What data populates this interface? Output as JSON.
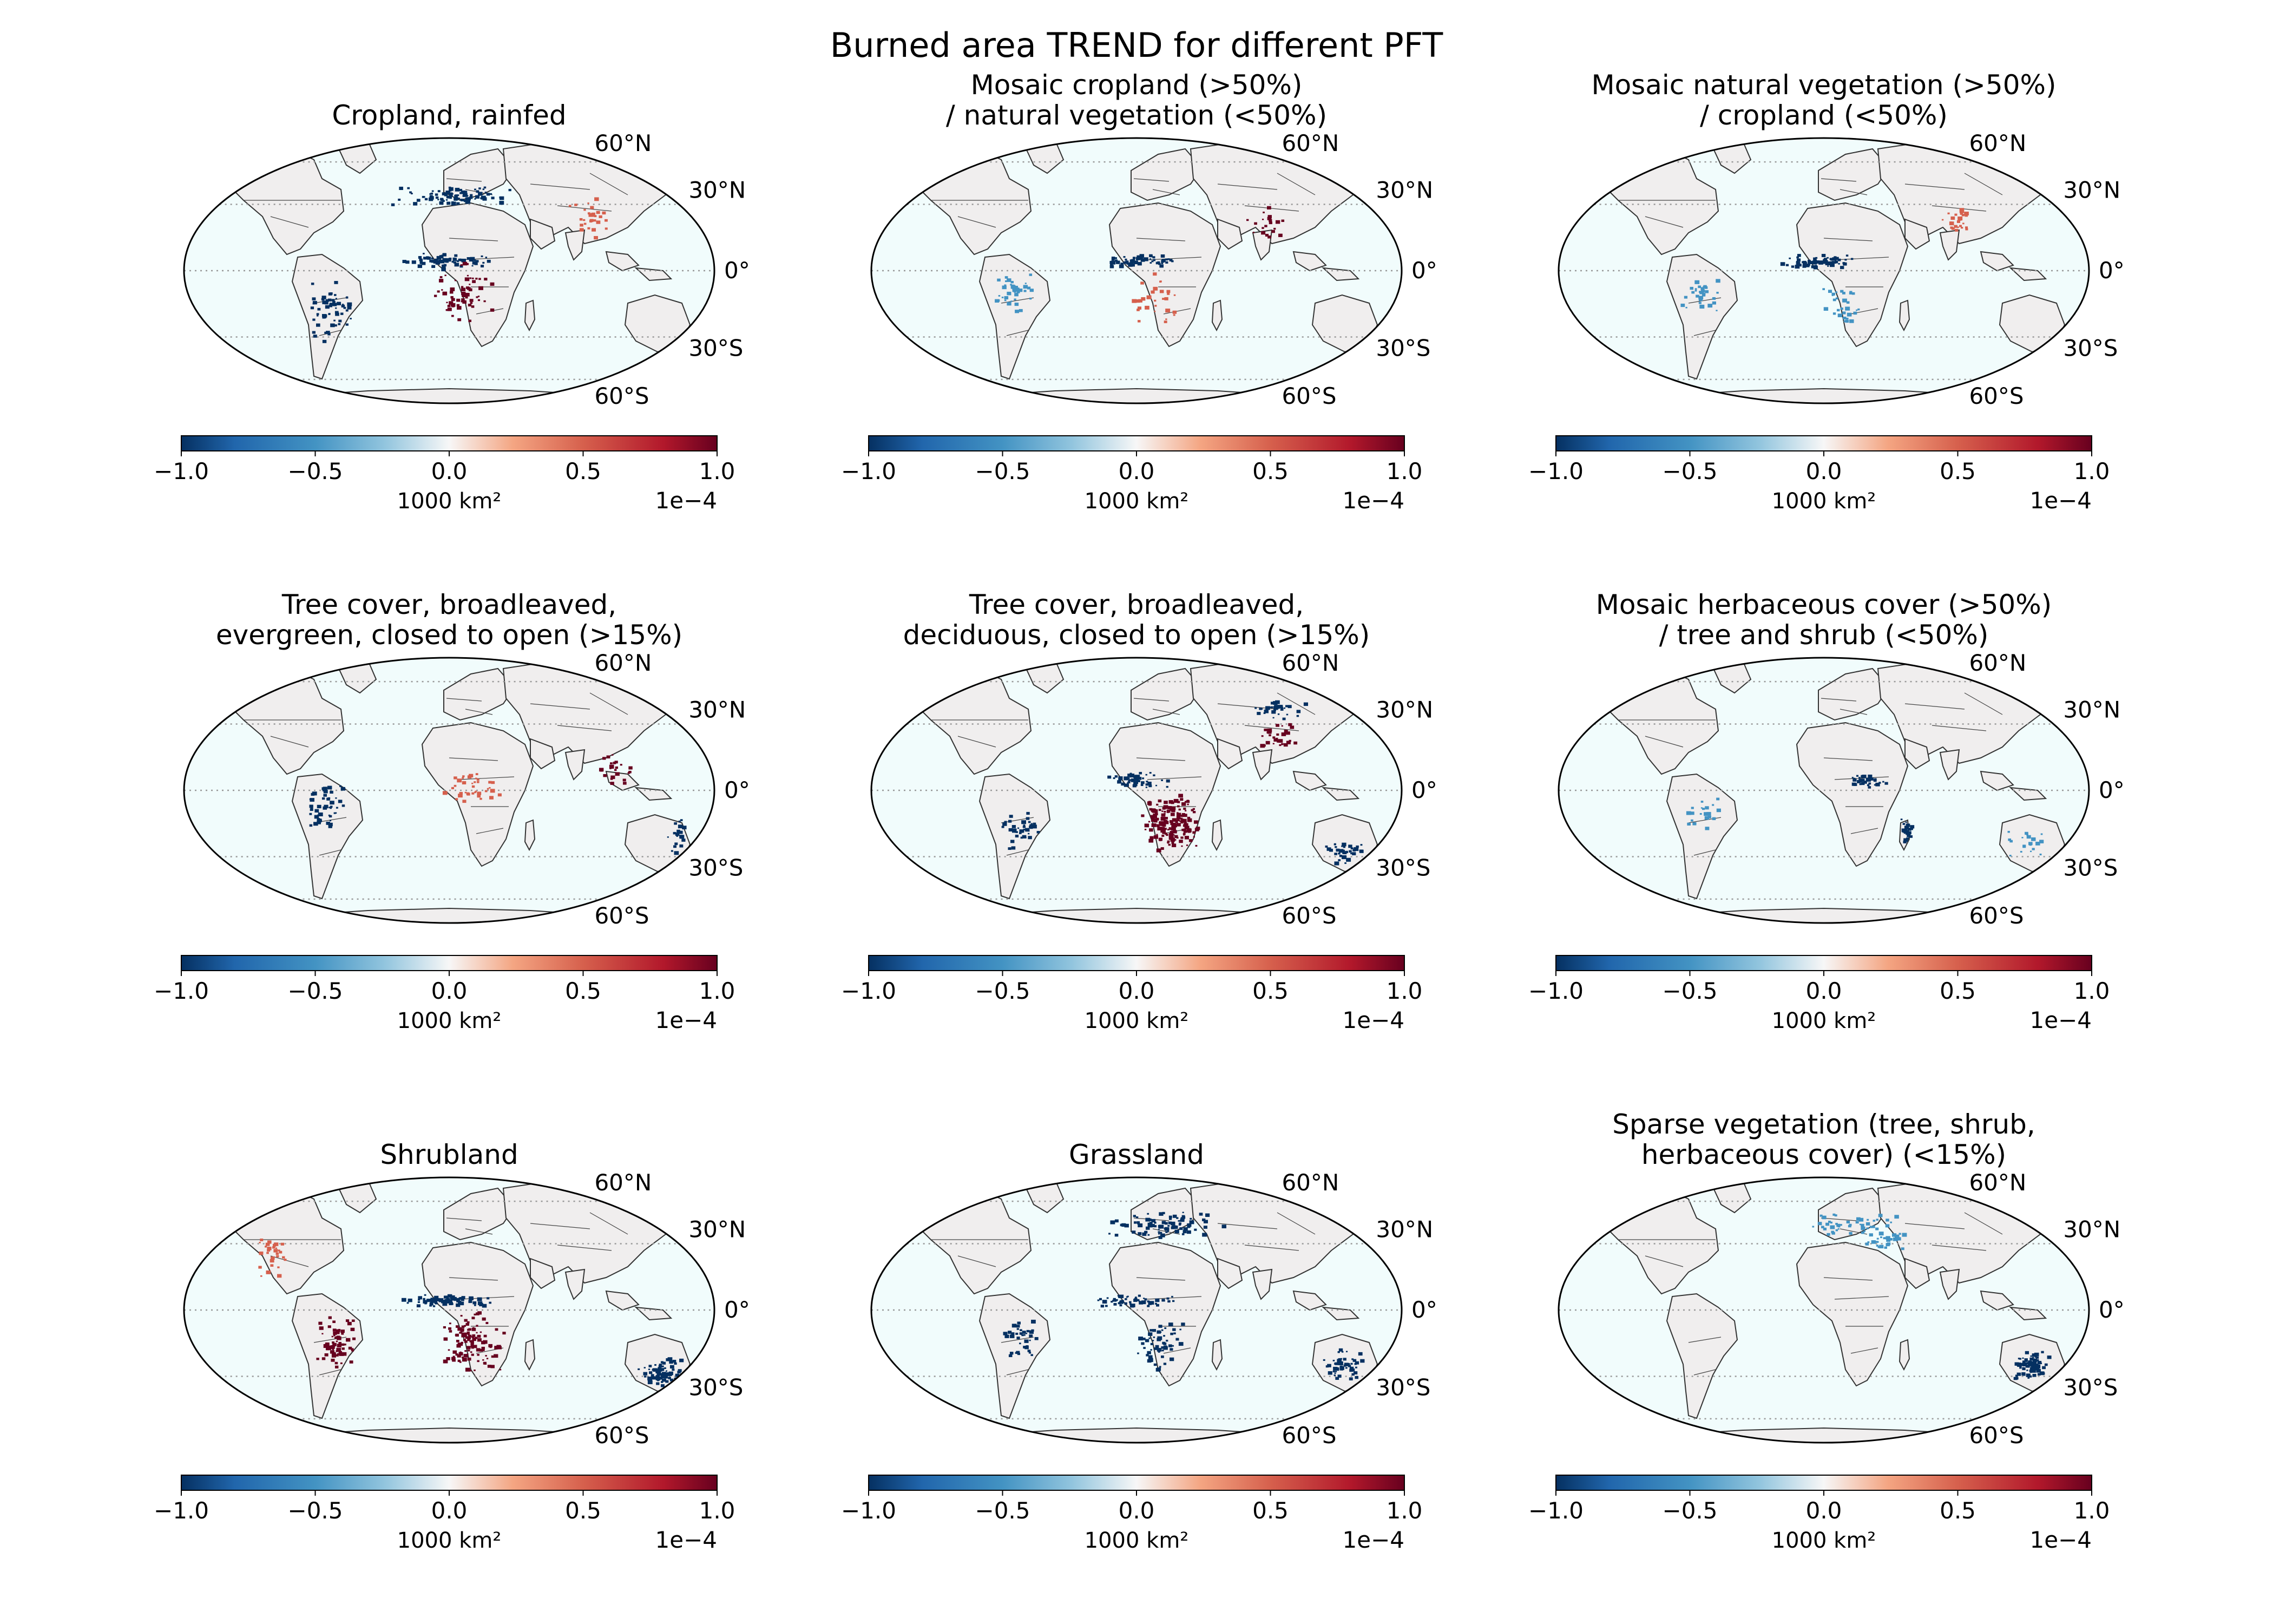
{
  "figure": {
    "title": "Burned area TREND for different PFT"
  },
  "colors": {
    "ocean": "#f1fcfc",
    "land": "#f0eeee",
    "coast": "#333333",
    "border": "#444444",
    "grid": "#999999",
    "neg_strong": "#053061",
    "neg_mid": "#4393c3",
    "white": "#f7f7f7",
    "pos_mid": "#d6604d",
    "pos_strong": "#67001f"
  },
  "lat_labels": [
    "60°N",
    "30°N",
    "0°",
    "30°S",
    "60°S"
  ],
  "colorbar": {
    "ticks": [
      "−1.0",
      "−0.5",
      "0.0",
      "0.5",
      "1.0"
    ],
    "label": "1000 km²",
    "exponent": "1e−4",
    "colormap": "RdBu_r"
  },
  "panels": [
    {
      "id": "cropland-rainfed",
      "title_lines": [
        "Cropland, rainfed"
      ]
    },
    {
      "id": "mosaic-cropland",
      "title_lines": [
        "Mosaic cropland (>50%)",
        "/ natural vegetation (<50%)"
      ]
    },
    {
      "id": "mosaic-natural-vegetation",
      "title_lines": [
        "Mosaic natural vegetation (>50%)",
        "/ cropland (<50%)"
      ]
    },
    {
      "id": "tree-broadleaved-evergreen",
      "title_lines": [
        "Tree cover, broadleaved,",
        "evergreen, closed to open (>15%)"
      ]
    },
    {
      "id": "tree-broadleaved-deciduous",
      "title_lines": [
        "Tree cover, broadleaved,",
        "deciduous, closed to open (>15%)"
      ]
    },
    {
      "id": "mosaic-herbaceous",
      "title_lines": [
        "Mosaic herbaceous cover (>50%)",
        "/ tree and shrub (<50%)"
      ]
    },
    {
      "id": "shrubland",
      "title_lines": [
        "Shrubland"
      ]
    },
    {
      "id": "grassland",
      "title_lines": [
        "Grassland"
      ]
    },
    {
      "id": "sparse-vegetation",
      "title_lines": [
        "Sparse vegetation (tree, shrub,",
        "herbaceous cover) (<15%)"
      ]
    }
  ]
}
